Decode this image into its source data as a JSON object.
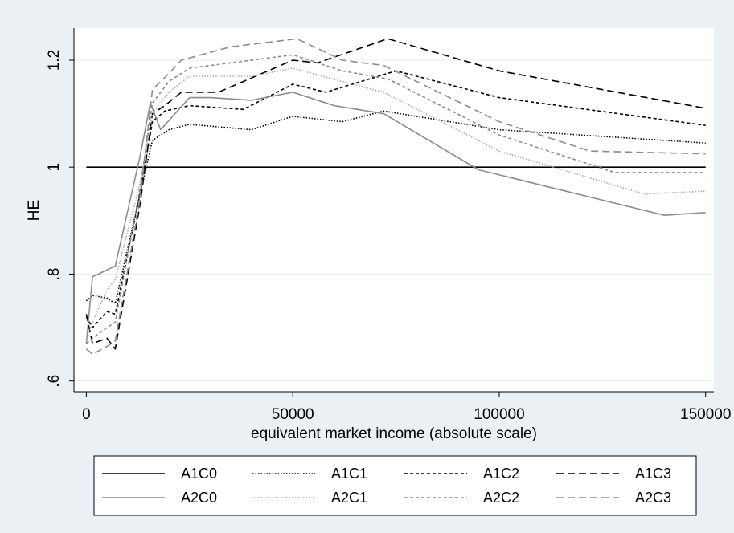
{
  "chart_data": {
    "type": "line",
    "xlabel": "equivalent market income (absolute scale)",
    "ylabel": "HE",
    "xlim": [
      -3000,
      152000
    ],
    "ylim": [
      0.58,
      1.26
    ],
    "x_ticks": [
      0,
      50000,
      100000,
      150000
    ],
    "x_tick_labels": [
      "0",
      "50000",
      "100000",
      "150000"
    ],
    "y_ticks": [
      0.6,
      0.8,
      1,
      1.2
    ],
    "y_tick_labels": [
      ".6",
      ".8",
      "1",
      "1.2"
    ],
    "grid": "horizontal",
    "legend_position": "bottom",
    "series": [
      {
        "name": "A1C0",
        "color": "#000000",
        "dash": "",
        "points": [
          [
            0,
            1
          ],
          [
            150000,
            1
          ]
        ]
      },
      {
        "name": "A1C1",
        "color": "#000000",
        "dash": "1.5 2",
        "points": [
          [
            0,
            0.75
          ],
          [
            1500,
            0.76
          ],
          [
            5000,
            0.755
          ],
          [
            7000,
            0.745
          ],
          [
            13000,
            0.95
          ],
          [
            16000,
            1.05
          ],
          [
            20000,
            1.07
          ],
          [
            25000,
            1.08
          ],
          [
            40000,
            1.07
          ],
          [
            50000,
            1.095
          ],
          [
            62000,
            1.085
          ],
          [
            72000,
            1.105
          ],
          [
            100000,
            1.07
          ],
          [
            150000,
            1.045
          ]
        ]
      },
      {
        "name": "A1C2",
        "color": "#000000",
        "dash": "4 3",
        "points": [
          [
            0,
            0.72
          ],
          [
            1500,
            0.7
          ],
          [
            5000,
            0.73
          ],
          [
            7000,
            0.725
          ],
          [
            13000,
            0.95
          ],
          [
            16000,
            1.085
          ],
          [
            19000,
            1.105
          ],
          [
            25000,
            1.115
          ],
          [
            38000,
            1.108
          ],
          [
            50000,
            1.155
          ],
          [
            58000,
            1.14
          ],
          [
            75000,
            1.18
          ],
          [
            100000,
            1.13
          ],
          [
            150000,
            1.078
          ]
        ]
      },
      {
        "name": "A1C3",
        "color": "#000000",
        "dash": "9 5",
        "points": [
          [
            0,
            0.725
          ],
          [
            1500,
            0.67
          ],
          [
            5000,
            0.68
          ],
          [
            7000,
            0.66
          ],
          [
            13000,
            0.93
          ],
          [
            16000,
            1.1
          ],
          [
            19000,
            1.115
          ],
          [
            23000,
            1.14
          ],
          [
            32000,
            1.14
          ],
          [
            50000,
            1.2
          ],
          [
            56000,
            1.195
          ],
          [
            73000,
            1.24
          ],
          [
            100000,
            1.18
          ],
          [
            150000,
            1.11
          ]
        ]
      },
      {
        "name": "A2C0",
        "color": "#8c8c8c",
        "dash": "",
        "points": [
          [
            0,
            0.67
          ],
          [
            1500,
            0.795
          ],
          [
            7000,
            0.815
          ],
          [
            13000,
            1.02
          ],
          [
            15500,
            1.12
          ],
          [
            18000,
            1.07
          ],
          [
            25000,
            1.13
          ],
          [
            30000,
            1.13
          ],
          [
            40000,
            1.125
          ],
          [
            50000,
            1.14
          ],
          [
            60000,
            1.115
          ],
          [
            72000,
            1.1
          ],
          [
            95000,
            0.995
          ],
          [
            140000,
            0.91
          ],
          [
            150000,
            0.915
          ]
        ]
      },
      {
        "name": "A2C1",
        "color": "#aaaaaa",
        "dash": "1.5 2",
        "points": [
          [
            0,
            0.675
          ],
          [
            1500,
            0.71
          ],
          [
            5000,
            0.77
          ],
          [
            7000,
            0.79
          ],
          [
            13000,
            0.97
          ],
          [
            16000,
            1.1
          ],
          [
            20000,
            1.14
          ],
          [
            25000,
            1.17
          ],
          [
            40000,
            1.17
          ],
          [
            50000,
            1.185
          ],
          [
            62000,
            1.16
          ],
          [
            72000,
            1.14
          ],
          [
            100000,
            1.03
          ],
          [
            135000,
            0.95
          ],
          [
            150000,
            0.955
          ]
        ]
      },
      {
        "name": "A2C2",
        "color": "#8c8c8c",
        "dash": "4 3",
        "points": [
          [
            0,
            0.67
          ],
          [
            1500,
            0.68
          ],
          [
            5000,
            0.7
          ],
          [
            7000,
            0.71
          ],
          [
            13000,
            0.96
          ],
          [
            16000,
            1.12
          ],
          [
            20000,
            1.16
          ],
          [
            25000,
            1.185
          ],
          [
            40000,
            1.2
          ],
          [
            50000,
            1.21
          ],
          [
            62000,
            1.18
          ],
          [
            73000,
            1.165
          ],
          [
            100000,
            1.06
          ],
          [
            128000,
            0.99
          ],
          [
            150000,
            0.99
          ]
        ]
      },
      {
        "name": "A2C3",
        "color": "#8c8c8c",
        "dash": "9 5",
        "points": [
          [
            0,
            0.66
          ],
          [
            1500,
            0.65
          ],
          [
            5000,
            0.665
          ],
          [
            7000,
            0.675
          ],
          [
            13000,
            0.94
          ],
          [
            16000,
            1.145
          ],
          [
            20000,
            1.175
          ],
          [
            23000,
            1.2
          ],
          [
            35000,
            1.225
          ],
          [
            51000,
            1.24
          ],
          [
            62000,
            1.2
          ],
          [
            72000,
            1.19
          ],
          [
            100000,
            1.085
          ],
          [
            122000,
            1.03
          ],
          [
            150000,
            1.025
          ]
        ]
      }
    ]
  }
}
